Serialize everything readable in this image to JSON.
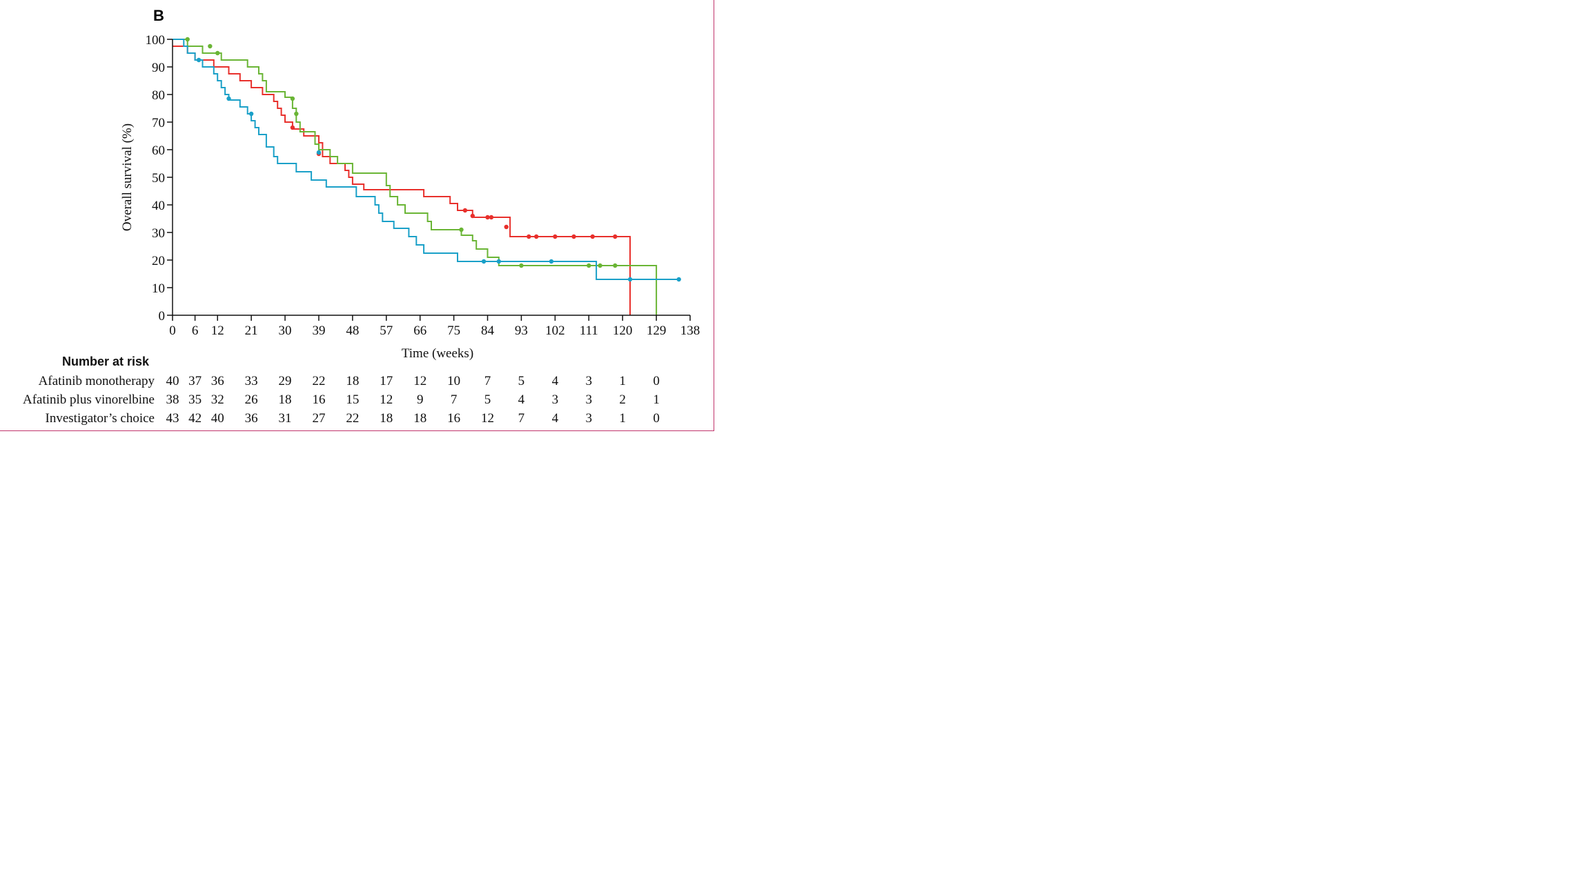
{
  "panel_label": "B",
  "chart_data": {
    "type": "line",
    "subtype": "kaplan-meier step",
    "ylabel": "Overall survival (%)",
    "xlabel": "Time (weeks)",
    "xlim": [
      0,
      138
    ],
    "ylim": [
      0,
      100
    ],
    "x_ticks": [
      0,
      6,
      12,
      21,
      30,
      39,
      48,
      57,
      66,
      75,
      84,
      93,
      102,
      111,
      120,
      129,
      138
    ],
    "y_ticks": [
      0,
      10,
      20,
      30,
      40,
      50,
      60,
      70,
      80,
      90,
      100
    ],
    "grid": false,
    "series": [
      {
        "name": "Afatinib monotherapy",
        "color": "#e8302c",
        "points": [
          [
            0,
            97.5
          ],
          [
            4,
            97.5
          ],
          [
            4,
            95
          ],
          [
            6,
            95
          ],
          [
            6,
            92.5
          ],
          [
            11,
            92.5
          ],
          [
            11,
            90
          ],
          [
            15,
            90
          ],
          [
            15,
            87.5
          ],
          [
            18,
            87.5
          ],
          [
            18,
            85
          ],
          [
            21,
            85
          ],
          [
            21,
            82.5
          ],
          [
            24,
            82.5
          ],
          [
            24,
            80
          ],
          [
            27,
            80
          ],
          [
            27,
            77.5
          ],
          [
            28,
            77.5
          ],
          [
            28,
            75
          ],
          [
            29,
            75
          ],
          [
            29,
            72.5
          ],
          [
            30,
            72.5
          ],
          [
            30,
            70
          ],
          [
            32,
            70
          ],
          [
            32,
            67.5
          ],
          [
            35,
            67.5
          ],
          [
            35,
            65
          ],
          [
            39,
            65
          ],
          [
            39,
            62.5
          ],
          [
            40,
            62.5
          ],
          [
            40,
            57.5
          ],
          [
            42,
            57.5
          ],
          [
            42,
            55
          ],
          [
            46,
            55
          ],
          [
            46,
            52.5
          ],
          [
            47,
            52.5
          ],
          [
            47,
            50
          ],
          [
            48,
            50
          ],
          [
            48,
            47.5
          ],
          [
            51,
            47.5
          ],
          [
            51,
            45.5
          ],
          [
            67,
            45.5
          ],
          [
            67,
            43
          ],
          [
            74,
            43
          ],
          [
            74,
            40.5
          ],
          [
            76,
            40.5
          ],
          [
            76,
            38
          ],
          [
            80,
            38
          ],
          [
            80,
            35.5
          ],
          [
            90,
            35.5
          ],
          [
            90,
            28.5
          ],
          [
            122,
            28.5
          ],
          [
            122,
            0
          ]
        ],
        "censors": [
          [
            32,
            68
          ],
          [
            39,
            58.5
          ],
          [
            78,
            38
          ],
          [
            80,
            36
          ],
          [
            84,
            35.5
          ],
          [
            85,
            35.5
          ],
          [
            89,
            32
          ],
          [
            95,
            28.5
          ],
          [
            97,
            28.5
          ],
          [
            102,
            28.5
          ],
          [
            107,
            28.5
          ],
          [
            112,
            28.5
          ],
          [
            118,
            28.5
          ]
        ]
      },
      {
        "name": "Afatinib plus vinorelbine",
        "color": "#6ab535",
        "points": [
          [
            0,
            100
          ],
          [
            4,
            100
          ],
          [
            4,
            97.5
          ],
          [
            8,
            97.5
          ],
          [
            8,
            95
          ],
          [
            13,
            95
          ],
          [
            13,
            92.5
          ],
          [
            20,
            92.5
          ],
          [
            20,
            90
          ],
          [
            23,
            90
          ],
          [
            23,
            87.5
          ],
          [
            24,
            87.5
          ],
          [
            24,
            85
          ],
          [
            25,
            85
          ],
          [
            25,
            81
          ],
          [
            30,
            81
          ],
          [
            30,
            79
          ],
          [
            32,
            79
          ],
          [
            32,
            75
          ],
          [
            33,
            75
          ],
          [
            33,
            70
          ],
          [
            34,
            70
          ],
          [
            34,
            66.5
          ],
          [
            38,
            66.5
          ],
          [
            38,
            62
          ],
          [
            39,
            62
          ],
          [
            39,
            60
          ],
          [
            42,
            60
          ],
          [
            42,
            57.5
          ],
          [
            44,
            57.5
          ],
          [
            44,
            55
          ],
          [
            48,
            55
          ],
          [
            48,
            51.5
          ],
          [
            57,
            51.5
          ],
          [
            57,
            47
          ],
          [
            58,
            47
          ],
          [
            58,
            43
          ],
          [
            60,
            43
          ],
          [
            60,
            40
          ],
          [
            62,
            40
          ],
          [
            62,
            37
          ],
          [
            68,
            37
          ],
          [
            68,
            34
          ],
          [
            69,
            34
          ],
          [
            69,
            31
          ],
          [
            77,
            31
          ],
          [
            77,
            29
          ],
          [
            80,
            29
          ],
          [
            80,
            27
          ],
          [
            81,
            27
          ],
          [
            81,
            24
          ],
          [
            84,
            24
          ],
          [
            84,
            21
          ],
          [
            87,
            21
          ],
          [
            87,
            18
          ],
          [
            129,
            18
          ],
          [
            129,
            0
          ]
        ],
        "censors": [
          [
            4,
            100
          ],
          [
            10,
            97.5
          ],
          [
            12,
            95
          ],
          [
            32,
            78.5
          ],
          [
            33,
            73
          ],
          [
            77,
            31
          ],
          [
            93,
            18
          ],
          [
            111,
            18
          ],
          [
            114,
            18
          ],
          [
            118,
            18
          ]
        ]
      },
      {
        "name": "Investigator's choice",
        "color": "#1aa0c8",
        "points": [
          [
            0,
            100
          ],
          [
            3,
            100
          ],
          [
            3,
            97.5
          ],
          [
            4,
            97.5
          ],
          [
            4,
            95
          ],
          [
            6,
            95
          ],
          [
            6,
            92.5
          ],
          [
            8,
            92.5
          ],
          [
            8,
            90
          ],
          [
            11,
            90
          ],
          [
            11,
            87.5
          ],
          [
            12,
            87.5
          ],
          [
            12,
            85
          ],
          [
            13,
            85
          ],
          [
            13,
            82.5
          ],
          [
            14,
            82.5
          ],
          [
            14,
            80
          ],
          [
            15,
            80
          ],
          [
            15,
            78
          ],
          [
            18,
            78
          ],
          [
            18,
            75.5
          ],
          [
            20,
            75.5
          ],
          [
            20,
            73
          ],
          [
            21,
            73
          ],
          [
            21,
            70.5
          ],
          [
            22,
            70.5
          ],
          [
            22,
            68
          ],
          [
            23,
            68
          ],
          [
            23,
            65.5
          ],
          [
            25,
            65.5
          ],
          [
            25,
            61
          ],
          [
            27,
            61
          ],
          [
            27,
            57.5
          ],
          [
            28,
            57.5
          ],
          [
            28,
            55
          ],
          [
            33,
            55
          ],
          [
            33,
            52
          ],
          [
            37,
            52
          ],
          [
            37,
            49
          ],
          [
            41,
            49
          ],
          [
            41,
            46.5
          ],
          [
            49,
            46.5
          ],
          [
            49,
            43
          ],
          [
            54,
            43
          ],
          [
            54,
            40
          ],
          [
            55,
            40
          ],
          [
            55,
            37
          ],
          [
            56,
            37
          ],
          [
            56,
            34
          ],
          [
            59,
            34
          ],
          [
            59,
            31.5
          ],
          [
            63,
            31.5
          ],
          [
            63,
            28.5
          ],
          [
            65,
            28.5
          ],
          [
            65,
            25.5
          ],
          [
            67,
            25.5
          ],
          [
            67,
            22.5
          ],
          [
            76,
            22.5
          ],
          [
            76,
            19.5
          ],
          [
            113,
            19.5
          ],
          [
            113,
            13
          ],
          [
            135,
            13
          ]
        ],
        "censors": [
          [
            7,
            92.5
          ],
          [
            15,
            78.5
          ],
          [
            21,
            73
          ],
          [
            39,
            59
          ],
          [
            83,
            19.5
          ],
          [
            87,
            19.5
          ],
          [
            101,
            19.5
          ],
          [
            122,
            13
          ],
          [
            135,
            13
          ]
        ]
      }
    ]
  },
  "risk_table": {
    "title": "Number at risk",
    "times": [
      0,
      6,
      12,
      21,
      30,
      39,
      48,
      57,
      66,
      75,
      84,
      93,
      102,
      111,
      120,
      129
    ],
    "rows": [
      {
        "label": "Afatinib monotherapy",
        "values": [
          "40",
          "37",
          "36",
          "33",
          "29",
          "22",
          "18",
          "17",
          "12",
          "10",
          "7",
          "5",
          "4",
          "3",
          "1",
          "0"
        ]
      },
      {
        "label": "Afatinib plus vinorelbine",
        "values": [
          "38",
          "35",
          "32",
          "26",
          "18",
          "16",
          "15",
          "12",
          "9",
          "7",
          "5",
          "4",
          "3",
          "3",
          "2",
          "1"
        ]
      },
      {
        "label": "Investigator’s choice",
        "values": [
          "43",
          "42",
          "40",
          "36",
          "31",
          "27",
          "22",
          "18",
          "18",
          "16",
          "12",
          "7",
          "4",
          "3",
          "1",
          "0"
        ]
      }
    ]
  }
}
